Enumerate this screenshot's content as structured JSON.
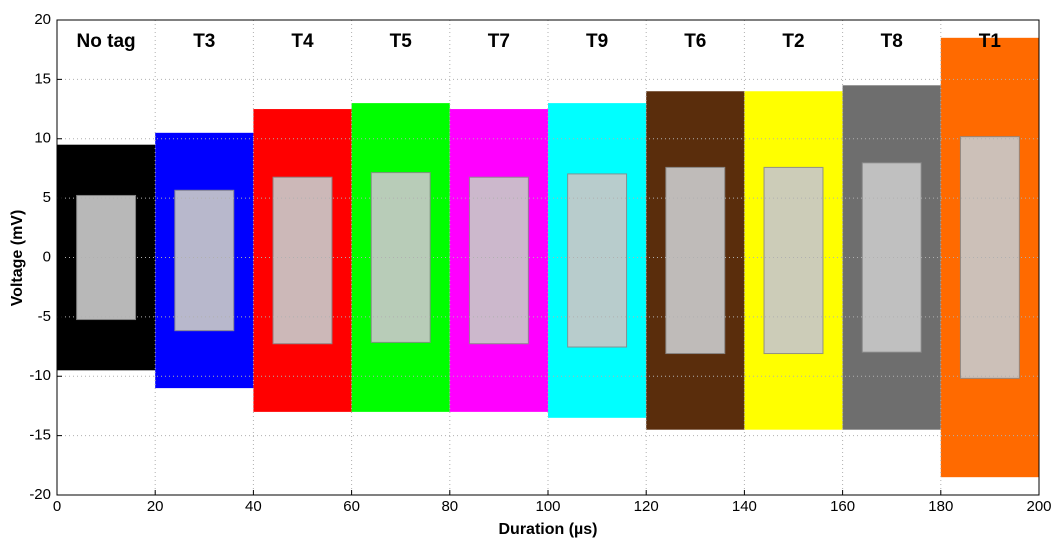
{
  "chart_data": {
    "type": "band",
    "x_label": "Duration (µs)",
    "y_label": "Voltage (mV)",
    "xlim": [
      0,
      200
    ],
    "xticks": [
      0,
      20,
      40,
      60,
      80,
      100,
      120,
      140,
      160,
      180,
      200
    ],
    "ylim": [
      -20,
      20
    ],
    "yticks": [
      -20,
      -15,
      -10,
      -5,
      0,
      5,
      10,
      15,
      20
    ],
    "grid": true,
    "series": [
      {
        "name": "No tag",
        "color": "#000000",
        "x": [
          0,
          20
        ],
        "values": [
          -9.5,
          9.5
        ]
      },
      {
        "name": "T3",
        "color": "#0000ff",
        "x": [
          20,
          40
        ],
        "values": [
          -11,
          10.5
        ]
      },
      {
        "name": "T4",
        "color": "#ff0000",
        "x": [
          40,
          60
        ],
        "values": [
          -13,
          12.5
        ]
      },
      {
        "name": "T5",
        "color": "#00ff00",
        "x": [
          60,
          80
        ],
        "values": [
          -13,
          13
        ]
      },
      {
        "name": "T7",
        "color": "#ff00ff",
        "x": [
          80,
          100
        ],
        "values": [
          -13,
          12.5
        ]
      },
      {
        "name": "T9",
        "color": "#00ffff",
        "x": [
          100,
          120
        ],
        "values": [
          -13.5,
          13
        ]
      },
      {
        "name": "T6",
        "color": "#5a2d0c",
        "x": [
          120,
          140
        ],
        "values": [
          -14.5,
          14
        ]
      },
      {
        "name": "T2",
        "color": "#ffff00",
        "x": [
          140,
          160
        ],
        "values": [
          -14.5,
          14
        ]
      },
      {
        "name": "T8",
        "color": "#6e6e6e",
        "x": [
          160,
          180
        ],
        "values": [
          -14.5,
          14.5
        ]
      },
      {
        "name": "T1",
        "color": "#ff6a00",
        "x": [
          180,
          200
        ],
        "values": [
          -18.5,
          18.5
        ]
      }
    ]
  }
}
